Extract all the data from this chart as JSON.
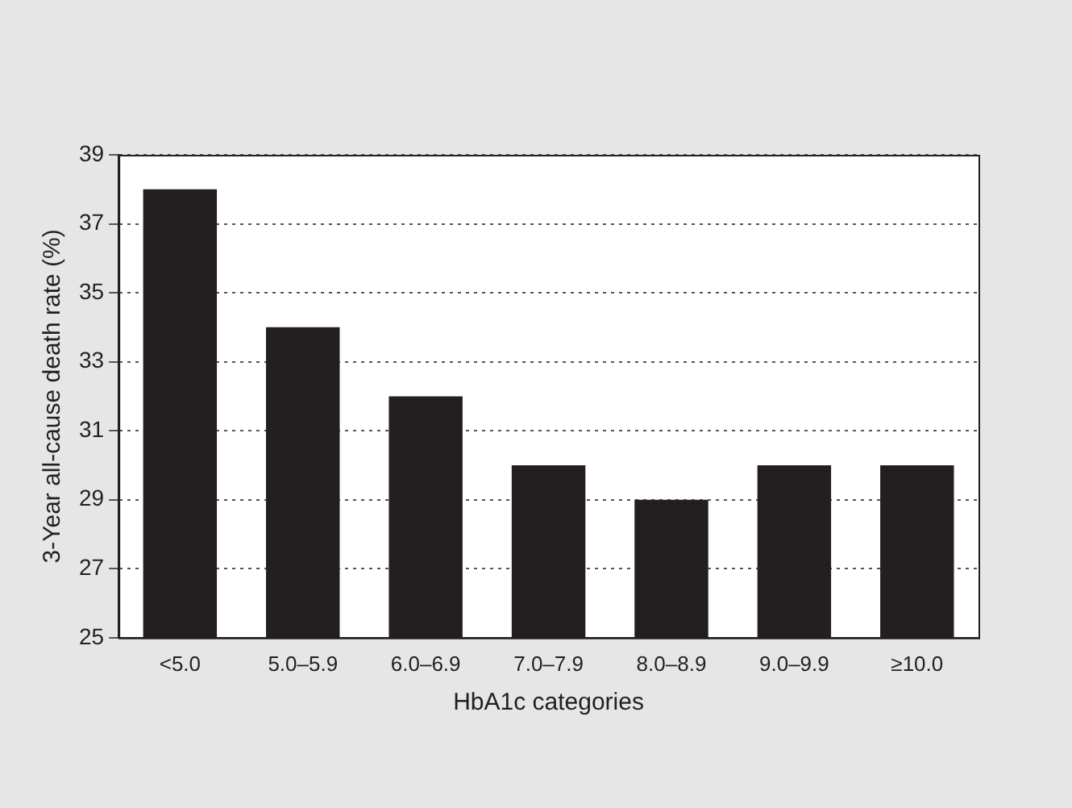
{
  "chart_data": {
    "type": "bar",
    "xlabel": "HbA1c categories",
    "ylabel": "3-Year all-cause death rate (%)",
    "categories": [
      "<5.0",
      "5.0–5.9",
      "6.0–6.9",
      "7.0–7.9",
      "8.0–8.9",
      "9.0–9.9",
      "≥10.0"
    ],
    "values": [
      38,
      34,
      32,
      30,
      29,
      30,
      30
    ],
    "color": "#231f20",
    "ylim": [
      25,
      39
    ],
    "yticks": [
      25,
      27,
      29,
      31,
      33,
      35,
      37,
      39
    ],
    "grid": "y"
  }
}
